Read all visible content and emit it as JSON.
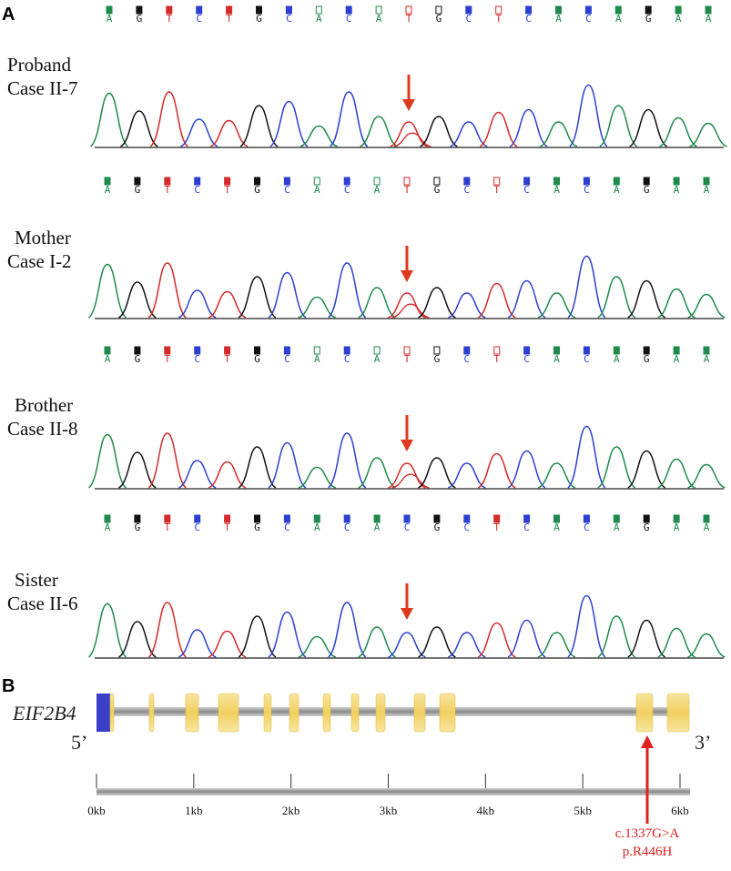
{
  "panel_a": {
    "letter": "A",
    "samples": [
      {
        "label_line1": "Proband",
        "label_line2": "Case II-7",
        "bases": [
          "A",
          "G",
          "T",
          "C",
          "T",
          "G",
          "C",
          "A",
          "C",
          "A",
          "T",
          "G",
          "C",
          "T",
          "C",
          "A",
          "C",
          "A",
          "G",
          "A",
          "A"
        ],
        "variant_index": 10
      },
      {
        "label_line1": "Mother",
        "label_line2": "Case I-2",
        "bases": [
          "A",
          "G",
          "T",
          "C",
          "T",
          "G",
          "C",
          "A",
          "C",
          "A",
          "T",
          "G",
          "C",
          "T",
          "C",
          "A",
          "C",
          "A",
          "G",
          "A",
          "A"
        ],
        "variant_index": 10
      },
      {
        "label_line1": "Brother",
        "label_line2": "Case II-8",
        "bases": [
          "A",
          "G",
          "T",
          "C",
          "T",
          "G",
          "C",
          "A",
          "C",
          "A",
          "T",
          "G",
          "C",
          "T",
          "C",
          "A",
          "C",
          "A",
          "G",
          "A",
          "A"
        ],
        "variant_index": 10
      },
      {
        "label_line1": "Sister",
        "label_line2": "Case II-6",
        "bases": [
          "A",
          "G",
          "T",
          "C",
          "T",
          "G",
          "C",
          "A",
          "C",
          "A",
          "C",
          "G",
          "C",
          "T",
          "C",
          "A",
          "C",
          "A",
          "G",
          "A",
          "A"
        ],
        "variant_index": 10
      }
    ],
    "base_colors": {
      "A": "#1f8a4c",
      "G": "#111111",
      "T": "#d42a2a",
      "C": "#2c3fd0"
    },
    "arrow_color": "#e03a1e"
  },
  "panel_b": {
    "letter": "B",
    "gene": "EIF2B4",
    "five_prime": "5’",
    "three_prime": "3’",
    "scale_labels": [
      "0kb",
      "1kb",
      "2kb",
      "3kb",
      "4kb",
      "5kb",
      "6kb"
    ],
    "mutation_line1": "c.1337G>A",
    "mutation_line2": "p.R446H",
    "exon_color": "#f2d060",
    "utr_color": "#3a3fc8",
    "mutation_color": "#e02020"
  }
}
